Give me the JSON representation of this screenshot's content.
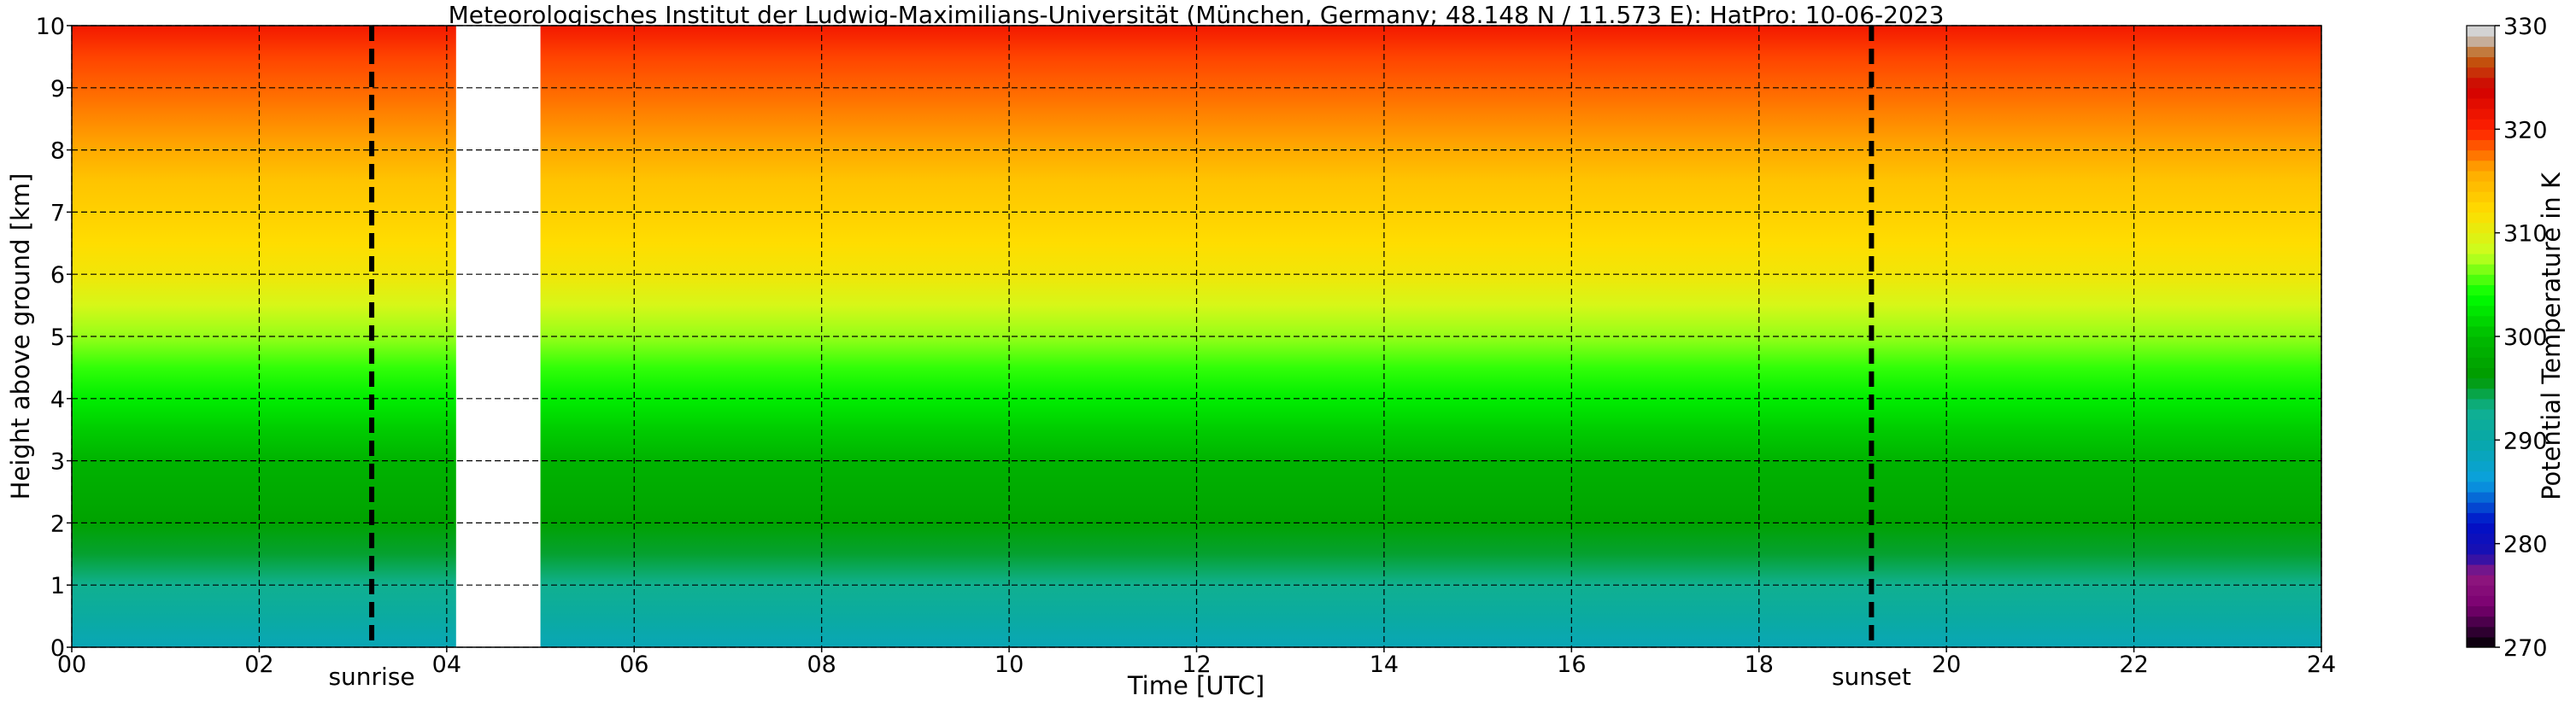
{
  "chart_data": {
    "type": "heatmap",
    "title": "Meteorologisches Institut der Ludwig-Maximilians-Universität (München, Germany; 48.148 N / 11.573 E):    HatPro: 10-06-2023",
    "xlabel": "Time [UTC]",
    "ylabel": "Height above ground [km]",
    "colorbar_label": "Potential Temperature in K",
    "xlim": [
      0,
      24
    ],
    "ylim": [
      0,
      10
    ],
    "x_ticks": [
      0,
      2,
      4,
      6,
      8,
      10,
      12,
      14,
      16,
      18,
      20,
      22,
      24
    ],
    "x_tick_labels": [
      "00",
      "02",
      "04",
      "06",
      "08",
      "10",
      "12",
      "14",
      "16",
      "18",
      "20",
      "22",
      "24"
    ],
    "y_ticks": [
      0,
      1,
      2,
      3,
      4,
      5,
      6,
      7,
      8,
      9,
      10
    ],
    "y_tick_labels": [
      "0",
      "1",
      "2",
      "3",
      "4",
      "5",
      "6",
      "7",
      "8",
      "9",
      "10"
    ],
    "grid": true,
    "colorbar": {
      "range": [
        270,
        330
      ],
      "tick_values": [
        270,
        280,
        290,
        300,
        310,
        320,
        330
      ],
      "tick_labels": [
        "270",
        "280",
        "290",
        "300",
        "310",
        "320",
        "330"
      ],
      "colors": [
        {
          "value": 270,
          "color": "#000000"
        },
        {
          "value": 272,
          "color": "#3d0040"
        },
        {
          "value": 274,
          "color": "#7a0070"
        },
        {
          "value": 277,
          "color": "#8f1880"
        },
        {
          "value": 279,
          "color": "#1a10b0"
        },
        {
          "value": 282,
          "color": "#0010c8"
        },
        {
          "value": 286,
          "color": "#0aa0e0"
        },
        {
          "value": 290,
          "color": "#08a8a8"
        },
        {
          "value": 293,
          "color": "#10b090"
        },
        {
          "value": 296,
          "color": "#009a00"
        },
        {
          "value": 300,
          "color": "#00bb00"
        },
        {
          "value": 304,
          "color": "#00ff00"
        },
        {
          "value": 308,
          "color": "#c8ff20"
        },
        {
          "value": 312,
          "color": "#ffdd00"
        },
        {
          "value": 316,
          "color": "#ffaa00"
        },
        {
          "value": 320,
          "color": "#ff2000"
        },
        {
          "value": 324,
          "color": "#d00000"
        },
        {
          "value": 327,
          "color": "#c06010"
        },
        {
          "value": 329,
          "color": "#c8c8c8"
        },
        {
          "value": 330,
          "color": "#dddddd"
        }
      ]
    },
    "height_km": [
      0.0,
      0.5,
      1.0,
      1.5,
      2.0,
      2.5,
      3.0,
      3.5,
      4.0,
      4.5,
      5.0,
      5.5,
      6.0,
      6.5,
      7.0,
      7.5,
      8.0,
      8.5,
      9.0,
      9.5,
      10.0
    ],
    "theta_profile_K": [
      289,
      291,
      293,
      295,
      297,
      298,
      299,
      301,
      303,
      305,
      307,
      309,
      311,
      312,
      313,
      314,
      316,
      317,
      318,
      319,
      321
    ],
    "data_gaps_hours": [
      [
        4.1,
        5.0
      ]
    ],
    "events": [
      {
        "label": "sunrise",
        "time_hours": 3.2
      },
      {
        "label": "sunset",
        "time_hours": 19.2
      }
    ]
  }
}
